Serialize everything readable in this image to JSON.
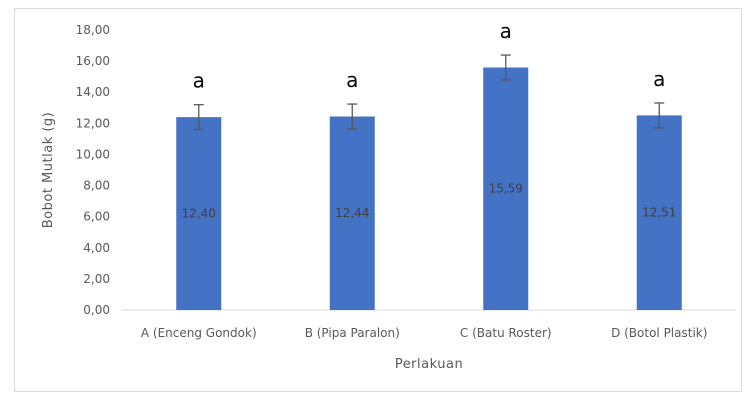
{
  "chart_data": {
    "type": "bar",
    "categories": [
      "A (Enceng Gondok)",
      "B (Pipa Paralon)",
      "C (Batu Roster)",
      "D (Botol Plastik)"
    ],
    "values": [
      12.4,
      12.44,
      15.59,
      12.51
    ],
    "data_labels": [
      "12,40",
      "12,44",
      "15,59",
      "12,51"
    ],
    "error": [
      0.8,
      0.8,
      0.8,
      0.8
    ],
    "significance_labels": [
      "a",
      "a",
      "a",
      "a"
    ],
    "xlabel": "Perlakuan",
    "ylabel": "Bobot Mutlak (g)",
    "ylim": [
      0,
      18
    ],
    "yticks": [
      0,
      2,
      4,
      6,
      8,
      10,
      12,
      14,
      16,
      18
    ],
    "ytick_labels": [
      "0,00",
      "2,00",
      "4,00",
      "6,00",
      "8,00",
      "10,00",
      "12,00",
      "14,00",
      "16,00",
      "18,00"
    ],
    "grid": false,
    "bar_color": "#4472c4",
    "error_color": "#595959",
    "axis_color": "#d9d9d9"
  }
}
